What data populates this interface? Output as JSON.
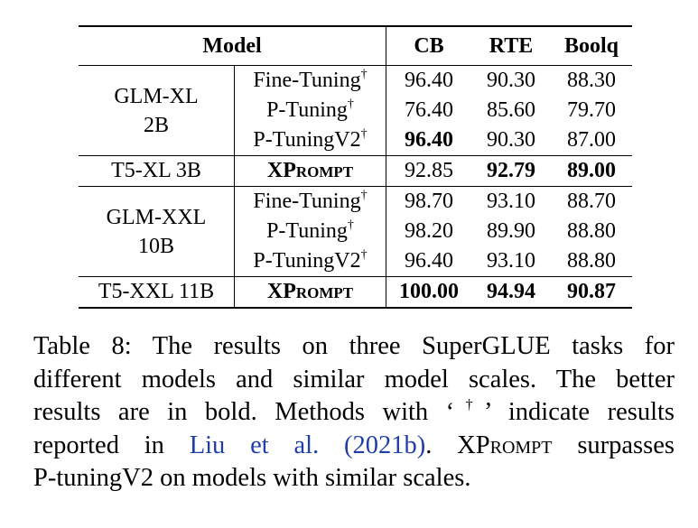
{
  "table": {
    "headers": [
      "Model",
      "CB",
      "RTE",
      "Boolq"
    ],
    "groups": [
      {
        "model": [
          "GLM-XL",
          "2B"
        ],
        "rows": [
          {
            "method": "Fine-Tuning",
            "dagger": "†",
            "cb": "96.40",
            "rte": "90.30",
            "boolq": "88.30"
          },
          {
            "method": "P-Tuning",
            "dagger": "†",
            "cb": "76.40",
            "rte": "85.60",
            "boolq": "79.70"
          },
          {
            "method": "P-TuningV2",
            "dagger": "†",
            "cb": "96.40",
            "rte": "90.30",
            "boolq": "87.00"
          }
        ]
      },
      {
        "model": [
          "T5-XL 3B"
        ],
        "rows": [
          {
            "method_x": "X",
            "method_rest": "Prompt",
            "cb": "92.85",
            "rte": "92.79",
            "boolq": "89.00"
          }
        ]
      },
      {
        "model": [
          "GLM-XXL",
          "10B"
        ],
        "rows": [
          {
            "method": "Fine-Tuning",
            "dagger": "†",
            "cb": "98.70",
            "rte": "93.10",
            "boolq": "88.70"
          },
          {
            "method": "P-Tuning",
            "dagger": "†",
            "cb": "98.20",
            "rte": "89.90",
            "boolq": "88.80"
          },
          {
            "method": "P-TuningV2",
            "dagger": "†",
            "cb": "96.40",
            "rte": "93.10",
            "boolq": "88.80"
          }
        ]
      },
      {
        "model": [
          "T5-XXL 11B"
        ],
        "rows": [
          {
            "method_x": "X",
            "method_rest": "Prompt",
            "cb": "100.00",
            "rte": "94.94",
            "boolq": "90.87"
          }
        ]
      }
    ]
  },
  "caption": {
    "line1": "Table 8:  The results on three SuperGLUE tasks for",
    "line2": "different models and similar model scales. The better",
    "line3a": "results are in bold.  Methods with ‘",
    "line3_dagger": "†",
    "line3b": "’ indicate results",
    "line4a": "reported in ",
    "citation": "Liu et al. (2021b)",
    "line4b": ".  X",
    "line4_sc": "Prompt",
    "line4c": " surpasses",
    "line5": "P-tuningV2 on models with similar scales."
  }
}
